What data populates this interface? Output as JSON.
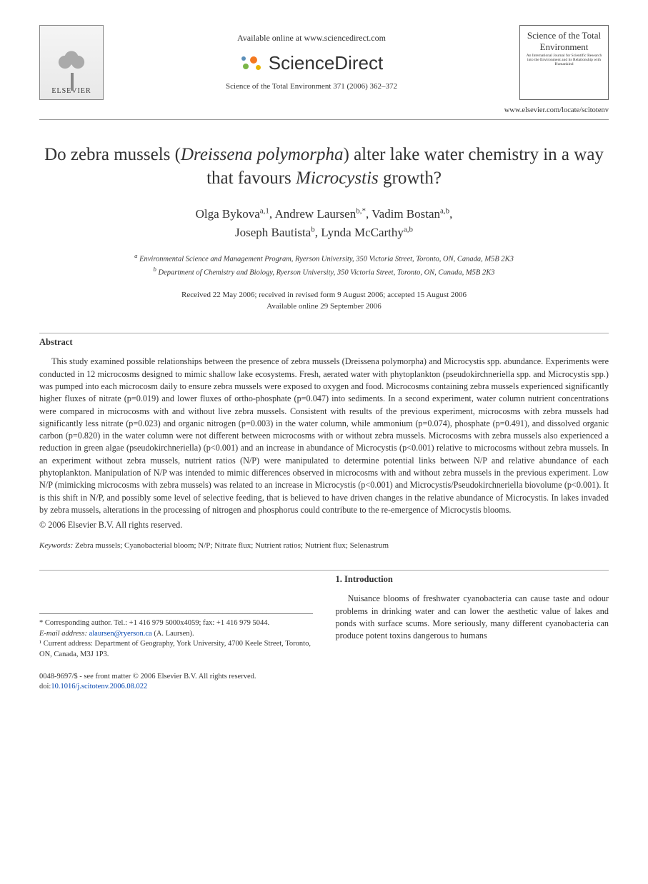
{
  "header": {
    "available_line": "Available online at www.sciencedirect.com",
    "sd_brand": "ScienceDirect",
    "elsevier_label": "ELSEVIER",
    "citation": "Science of the Total Environment 371 (2006) 362–372",
    "journal_name": "Science of the Total Environment",
    "journal_sub": "An International Journal for Scientific Research into the Environment and its Relationship with Humankind",
    "locate": "www.elsevier.com/locate/scitotenv"
  },
  "title_parts": {
    "p1": "Do zebra mussels (",
    "italic1": "Dreissena polymorpha",
    "p2": ") alter lake water chemistry in a way that favours ",
    "italic2": "Microcystis",
    "p3": " growth?"
  },
  "authors": {
    "a1": "Olga Bykova",
    "a1sup": "a,1",
    "a2": "Andrew Laursen",
    "a2sup": "b,*",
    "a3": "Vadim Bostan",
    "a3sup": "a,b",
    "a4": "Joseph Bautista",
    "a4sup": "b",
    "a5": "Lynda McCarthy",
    "a5sup": "a,b"
  },
  "affiliations": {
    "a": "Environmental Science and Management Program, Ryerson University, 350 Victoria Street, Toronto, ON, Canada, M5B 2K3",
    "b": "Department of Chemistry and Biology, Ryerson University, 350 Victoria Street, Toronto, ON, Canada, M5B 2K3"
  },
  "dates": {
    "line1": "Received 22 May 2006; received in revised form 9 August 2006; accepted 15 August 2006",
    "line2": "Available online 29 September 2006"
  },
  "abs_heading": "Abstract",
  "abstract": "This study examined possible relationships between the presence of zebra mussels (Dreissena polymorpha) and Microcystis spp. abundance. Experiments were conducted in 12 microcosms designed to mimic shallow lake ecosystems. Fresh, aerated water with phytoplankton (pseudokirchneriella spp. and Microcystis spp.) was pumped into each microcosm daily to ensure zebra mussels were exposed to oxygen and food. Microcosms containing zebra mussels experienced significantly higher fluxes of nitrate (p=0.019) and lower fluxes of ortho-phosphate (p=0.047) into sediments. In a second experiment, water column nutrient concentrations were compared in microcosms with and without live zebra mussels. Consistent with results of the previous experiment, microcosms with zebra mussels had significantly less nitrate (p=0.023) and organic nitrogen (p=0.003) in the water column, while ammonium (p=0.074), phosphate (p=0.491), and dissolved organic carbon (p=0.820) in the water column were not different between microcosms with or without zebra mussels. Microcosms with zebra mussels also experienced a reduction in green algae (pseudokirchneriella) (p<0.001) and an increase in abundance of Microcystis (p<0.001) relative to microcosms without zebra mussels. In an experiment without zebra mussels, nutrient ratios (N/P) were manipulated to determine potential links between N/P and relative abundance of each phytoplankton. Manipulation of N/P was intended to mimic differences observed in microcosms with and without zebra mussels in the previous experiment. Low N/P (mimicking microcosms with zebra mussels) was related to an increase in Microcystis (p<0.001) and Microcystis/Pseudokirchneriella biovolume (p<0.001). It is this shift in N/P, and possibly some level of selective feeding, that is believed to have driven changes in the relative abundance of Microcystis. In lakes invaded by zebra mussels, alterations in the processing of nitrogen and phosphorus could contribute to the re-emergence of Microcystis blooms.",
  "copyright": "© 2006 Elsevier B.V. All rights reserved.",
  "keywords_label": "Keywords:",
  "keywords": "Zebra mussels; Cyanobacterial bloom; N/P; Nitrate flux; Nutrient ratios; Nutrient flux; Selenastrum",
  "intro_head": "1. Introduction",
  "intro_para": "Nuisance blooms of freshwater cyanobacteria can cause taste and odour problems in drinking water and can lower the aesthetic value of lakes and ponds with surface scums. More seriously, many different cyanobacteria can produce potent toxins dangerous to humans",
  "footnotes": {
    "corr": "* Corresponding author. Tel.: +1 416 979 5000x4059; fax: +1 416 979 5044.",
    "email_label": "E-mail address:",
    "email": "alaursen@ryerson.ca",
    "email_paren": "(A. Laursen).",
    "note1": "¹ Current address: Department of Geography, York University, 4700 Keele Street, Toronto, ON, Canada, M3J 1P3."
  },
  "footer": {
    "line1": "0048-9697/$ - see front matter © 2006 Elsevier B.V. All rights reserved.",
    "doi_label": "doi:",
    "doi": "10.1016/j.scitotenv.2006.08.022"
  }
}
